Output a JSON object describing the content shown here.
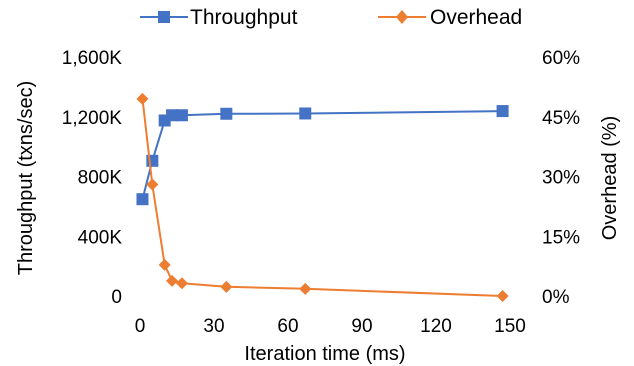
{
  "chart_data": {
    "type": "line",
    "title": "",
    "xlabel": "Iteration time (ms)",
    "ylabel": "Throughput (txns/sec)",
    "y2label": "Overhead (%)",
    "xlim": [
      0,
      150
    ],
    "ylim": [
      0,
      1600
    ],
    "y2lim": [
      0,
      60
    ],
    "x_ticks": [
      0,
      30,
      60,
      90,
      120,
      150
    ],
    "x_tick_labels": [
      "0",
      "30",
      "60",
      "90",
      "120",
      "150"
    ],
    "y_ticks": [
      0,
      400,
      800,
      1200,
      1600
    ],
    "y_tick_labels": [
      "0",
      "400K",
      "800K",
      "1,200K",
      "1,600K"
    ],
    "y2_ticks": [
      0,
      15,
      30,
      45,
      60
    ],
    "y2_tick_labels": [
      "0%",
      "15%",
      "30%",
      "45%",
      "60%"
    ],
    "grid": false,
    "legend_position": "top",
    "series": [
      {
        "name": "Throughput",
        "axis": "left",
        "color": "#4472c4",
        "marker": "square",
        "x": [
          1,
          5,
          10,
          13,
          17,
          35,
          67,
          147
        ],
        "y": [
          648,
          905,
          1175,
          1210,
          1210,
          1220,
          1222,
          1238
        ]
      },
      {
        "name": "Overhead",
        "axis": "right",
        "color": "#ed7d31",
        "marker": "diamond",
        "x": [
          1,
          5,
          10,
          13,
          17,
          35,
          67,
          147
        ],
        "y": [
          49.5,
          28,
          7.8,
          3.8,
          3.2,
          2.3,
          1.8,
          0
        ]
      }
    ]
  }
}
